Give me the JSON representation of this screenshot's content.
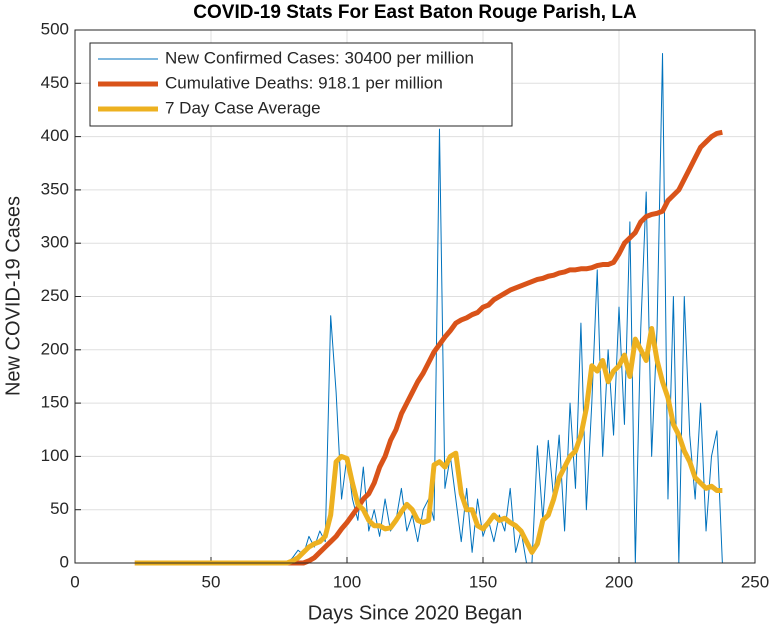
{
  "chart_data": {
    "type": "line",
    "title": "COVID-19 Stats For East Baton Rouge Parish, LA",
    "xlabel": "Days Since 2020 Began",
    "ylabel": "New COVID-19 Cases",
    "xlim": [
      0,
      250
    ],
    "xticks": [
      0,
      50,
      100,
      150,
      200,
      250
    ],
    "ylim": [
      0,
      500
    ],
    "yticks": [
      0,
      50,
      100,
      150,
      200,
      250,
      300,
      350,
      400,
      450,
      500
    ],
    "grid": true,
    "legend": "upper left",
    "x": [
      22,
      24,
      26,
      28,
      30,
      32,
      34,
      36,
      38,
      40,
      42,
      44,
      46,
      48,
      50,
      52,
      54,
      56,
      58,
      60,
      62,
      64,
      66,
      68,
      70,
      72,
      74,
      76,
      78,
      80,
      82,
      84,
      86,
      88,
      90,
      92,
      94,
      96,
      98,
      100,
      102,
      104,
      106,
      108,
      110,
      112,
      114,
      116,
      118,
      120,
      122,
      124,
      126,
      128,
      130,
      132,
      134,
      136,
      138,
      140,
      142,
      144,
      146,
      148,
      150,
      152,
      154,
      156,
      158,
      160,
      162,
      164,
      166,
      168,
      170,
      172,
      174,
      176,
      178,
      180,
      182,
      184,
      186,
      188,
      190,
      192,
      194,
      196,
      198,
      200,
      202,
      204,
      206,
      208,
      210,
      212,
      214,
      216,
      218,
      220,
      222,
      224,
      226,
      228,
      230,
      232,
      234,
      236,
      238
    ],
    "series": [
      {
        "name": "New Confirmed Cases: 30400 per million",
        "color": "#0072bd",
        "width": 1,
        "values": [
          0,
          0,
          0,
          0,
          0,
          0,
          0,
          0,
          0,
          0,
          0,
          0,
          0,
          0,
          0,
          0,
          0,
          0,
          0,
          0,
          0,
          0,
          0,
          0,
          0,
          0,
          0,
          0,
          0,
          5,
          12,
          8,
          25,
          15,
          30,
          20,
          232,
          160,
          60,
          100,
          60,
          40,
          90,
          30,
          50,
          25,
          60,
          30,
          40,
          70,
          30,
          45,
          20,
          50,
          60,
          40,
          407,
          70,
          100,
          60,
          20,
          70,
          10,
          60,
          25,
          40,
          20,
          45,
          30,
          70,
          10,
          30,
          0,
          0,
          110,
          40,
          115,
          60,
          120,
          30,
          150,
          70,
          225,
          50,
          150,
          275,
          100,
          200,
          120,
          240,
          130,
          320,
          0,
          220,
          348,
          100,
          220,
          478,
          60,
          250,
          0,
          250,
          120,
          60,
          150,
          30,
          100,
          124,
          0
        ]
      },
      {
        "name": "Cumulative Deaths: 918.1 per million",
        "color": "#d95319",
        "width": 5,
        "values": [
          0,
          0,
          0,
          0,
          0,
          0,
          0,
          0,
          0,
          0,
          0,
          0,
          0,
          0,
          0,
          0,
          0,
          0,
          0,
          0,
          0,
          0,
          0,
          0,
          0,
          0,
          0,
          0,
          0,
          0,
          0,
          0,
          2,
          5,
          10,
          15,
          20,
          25,
          32,
          38,
          45,
          52,
          60,
          65,
          75,
          90,
          100,
          115,
          125,
          140,
          150,
          160,
          170,
          178,
          188,
          198,
          205,
          212,
          218,
          225,
          228,
          230,
          233,
          235,
          240,
          242,
          247,
          250,
          253,
          256,
          258,
          260,
          262,
          264,
          266,
          267,
          269,
          270,
          272,
          273,
          275,
          275,
          276,
          276,
          277,
          279,
          280,
          280,
          282,
          290,
          300,
          305,
          310,
          320,
          325,
          327,
          328,
          330,
          340,
          345,
          350,
          360,
          370,
          380,
          390,
          395,
          400,
          403,
          404
        ]
      },
      {
        "name": "7 Day Case Average",
        "color": "#edb120",
        "width": 5,
        "values": [
          0,
          0,
          0,
          0,
          0,
          0,
          0,
          0,
          0,
          0,
          0,
          0,
          0,
          0,
          0,
          0,
          0,
          0,
          0,
          0,
          0,
          0,
          0,
          0,
          0,
          0,
          0,
          0,
          0,
          2,
          5,
          10,
          15,
          18,
          20,
          25,
          45,
          95,
          100,
          98,
          75,
          55,
          50,
          40,
          35,
          35,
          32,
          33,
          40,
          48,
          55,
          50,
          40,
          38,
          40,
          92,
          95,
          90,
          100,
          103,
          65,
          50,
          50,
          35,
          32,
          38,
          45,
          40,
          42,
          38,
          35,
          30,
          20,
          10,
          18,
          40,
          45,
          60,
          80,
          90,
          100,
          105,
          120,
          145,
          185,
          180,
          190,
          170,
          180,
          185,
          195,
          175,
          210,
          200,
          190,
          220,
          190,
          170,
          155,
          130,
          120,
          105,
          95,
          80,
          75,
          70,
          72,
          68,
          68
        ]
      }
    ]
  }
}
